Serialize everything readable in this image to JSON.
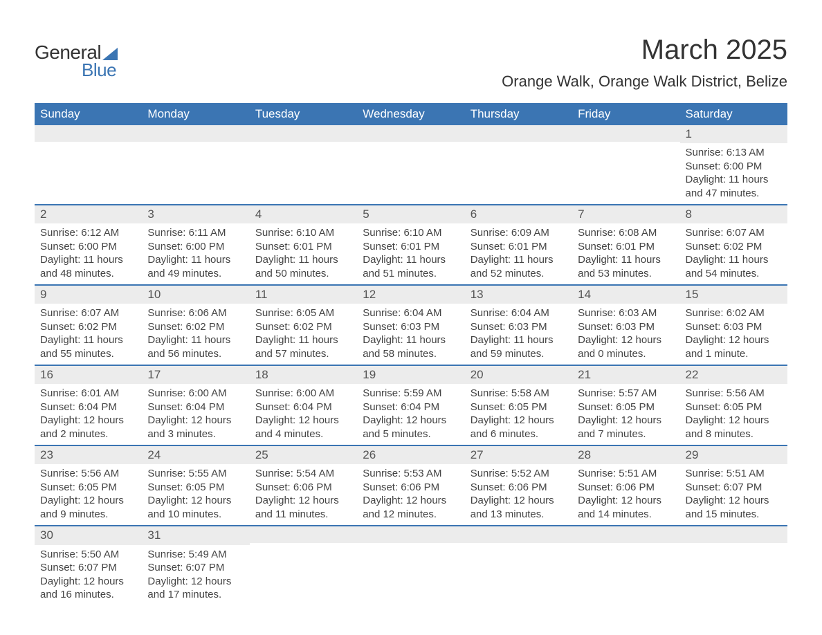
{
  "logo": {
    "text1": "General",
    "text2": "Blue"
  },
  "title": "March 2025",
  "subtitle": "Orange Walk, Orange Walk District, Belize",
  "colors": {
    "header_bg": "#3b75b3",
    "header_text": "#ffffff",
    "daynum_bg": "#ececec",
    "row_divider": "#3b75b3",
    "body_text": "#444444",
    "title_text": "#333333",
    "background": "#ffffff"
  },
  "typography": {
    "title_fontsize": 40,
    "subtitle_fontsize": 22,
    "header_fontsize": 17,
    "daynum_fontsize": 17,
    "cell_fontsize": 15
  },
  "calendar": {
    "type": "table",
    "columns": [
      "Sunday",
      "Monday",
      "Tuesday",
      "Wednesday",
      "Thursday",
      "Friday",
      "Saturday"
    ],
    "weeks": [
      [
        null,
        null,
        null,
        null,
        null,
        null,
        {
          "day": "1",
          "sunrise": "Sunrise: 6:13 AM",
          "sunset": "Sunset: 6:00 PM",
          "daylight1": "Daylight: 11 hours",
          "daylight2": "and 47 minutes."
        }
      ],
      [
        {
          "day": "2",
          "sunrise": "Sunrise: 6:12 AM",
          "sunset": "Sunset: 6:00 PM",
          "daylight1": "Daylight: 11 hours",
          "daylight2": "and 48 minutes."
        },
        {
          "day": "3",
          "sunrise": "Sunrise: 6:11 AM",
          "sunset": "Sunset: 6:00 PM",
          "daylight1": "Daylight: 11 hours",
          "daylight2": "and 49 minutes."
        },
        {
          "day": "4",
          "sunrise": "Sunrise: 6:10 AM",
          "sunset": "Sunset: 6:01 PM",
          "daylight1": "Daylight: 11 hours",
          "daylight2": "and 50 minutes."
        },
        {
          "day": "5",
          "sunrise": "Sunrise: 6:10 AM",
          "sunset": "Sunset: 6:01 PM",
          "daylight1": "Daylight: 11 hours",
          "daylight2": "and 51 minutes."
        },
        {
          "day": "6",
          "sunrise": "Sunrise: 6:09 AM",
          "sunset": "Sunset: 6:01 PM",
          "daylight1": "Daylight: 11 hours",
          "daylight2": "and 52 minutes."
        },
        {
          "day": "7",
          "sunrise": "Sunrise: 6:08 AM",
          "sunset": "Sunset: 6:01 PM",
          "daylight1": "Daylight: 11 hours",
          "daylight2": "and 53 minutes."
        },
        {
          "day": "8",
          "sunrise": "Sunrise: 6:07 AM",
          "sunset": "Sunset: 6:02 PM",
          "daylight1": "Daylight: 11 hours",
          "daylight2": "and 54 minutes."
        }
      ],
      [
        {
          "day": "9",
          "sunrise": "Sunrise: 6:07 AM",
          "sunset": "Sunset: 6:02 PM",
          "daylight1": "Daylight: 11 hours",
          "daylight2": "and 55 minutes."
        },
        {
          "day": "10",
          "sunrise": "Sunrise: 6:06 AM",
          "sunset": "Sunset: 6:02 PM",
          "daylight1": "Daylight: 11 hours",
          "daylight2": "and 56 minutes."
        },
        {
          "day": "11",
          "sunrise": "Sunrise: 6:05 AM",
          "sunset": "Sunset: 6:02 PM",
          "daylight1": "Daylight: 11 hours",
          "daylight2": "and 57 minutes."
        },
        {
          "day": "12",
          "sunrise": "Sunrise: 6:04 AM",
          "sunset": "Sunset: 6:03 PM",
          "daylight1": "Daylight: 11 hours",
          "daylight2": "and 58 minutes."
        },
        {
          "day": "13",
          "sunrise": "Sunrise: 6:04 AM",
          "sunset": "Sunset: 6:03 PM",
          "daylight1": "Daylight: 11 hours",
          "daylight2": "and 59 minutes."
        },
        {
          "day": "14",
          "sunrise": "Sunrise: 6:03 AM",
          "sunset": "Sunset: 6:03 PM",
          "daylight1": "Daylight: 12 hours",
          "daylight2": "and 0 minutes."
        },
        {
          "day": "15",
          "sunrise": "Sunrise: 6:02 AM",
          "sunset": "Sunset: 6:03 PM",
          "daylight1": "Daylight: 12 hours",
          "daylight2": "and 1 minute."
        }
      ],
      [
        {
          "day": "16",
          "sunrise": "Sunrise: 6:01 AM",
          "sunset": "Sunset: 6:04 PM",
          "daylight1": "Daylight: 12 hours",
          "daylight2": "and 2 minutes."
        },
        {
          "day": "17",
          "sunrise": "Sunrise: 6:00 AM",
          "sunset": "Sunset: 6:04 PM",
          "daylight1": "Daylight: 12 hours",
          "daylight2": "and 3 minutes."
        },
        {
          "day": "18",
          "sunrise": "Sunrise: 6:00 AM",
          "sunset": "Sunset: 6:04 PM",
          "daylight1": "Daylight: 12 hours",
          "daylight2": "and 4 minutes."
        },
        {
          "day": "19",
          "sunrise": "Sunrise: 5:59 AM",
          "sunset": "Sunset: 6:04 PM",
          "daylight1": "Daylight: 12 hours",
          "daylight2": "and 5 minutes."
        },
        {
          "day": "20",
          "sunrise": "Sunrise: 5:58 AM",
          "sunset": "Sunset: 6:05 PM",
          "daylight1": "Daylight: 12 hours",
          "daylight2": "and 6 minutes."
        },
        {
          "day": "21",
          "sunrise": "Sunrise: 5:57 AM",
          "sunset": "Sunset: 6:05 PM",
          "daylight1": "Daylight: 12 hours",
          "daylight2": "and 7 minutes."
        },
        {
          "day": "22",
          "sunrise": "Sunrise: 5:56 AM",
          "sunset": "Sunset: 6:05 PM",
          "daylight1": "Daylight: 12 hours",
          "daylight2": "and 8 minutes."
        }
      ],
      [
        {
          "day": "23",
          "sunrise": "Sunrise: 5:56 AM",
          "sunset": "Sunset: 6:05 PM",
          "daylight1": "Daylight: 12 hours",
          "daylight2": "and 9 minutes."
        },
        {
          "day": "24",
          "sunrise": "Sunrise: 5:55 AM",
          "sunset": "Sunset: 6:05 PM",
          "daylight1": "Daylight: 12 hours",
          "daylight2": "and 10 minutes."
        },
        {
          "day": "25",
          "sunrise": "Sunrise: 5:54 AM",
          "sunset": "Sunset: 6:06 PM",
          "daylight1": "Daylight: 12 hours",
          "daylight2": "and 11 minutes."
        },
        {
          "day": "26",
          "sunrise": "Sunrise: 5:53 AM",
          "sunset": "Sunset: 6:06 PM",
          "daylight1": "Daylight: 12 hours",
          "daylight2": "and 12 minutes."
        },
        {
          "day": "27",
          "sunrise": "Sunrise: 5:52 AM",
          "sunset": "Sunset: 6:06 PM",
          "daylight1": "Daylight: 12 hours",
          "daylight2": "and 13 minutes."
        },
        {
          "day": "28",
          "sunrise": "Sunrise: 5:51 AM",
          "sunset": "Sunset: 6:06 PM",
          "daylight1": "Daylight: 12 hours",
          "daylight2": "and 14 minutes."
        },
        {
          "day": "29",
          "sunrise": "Sunrise: 5:51 AM",
          "sunset": "Sunset: 6:07 PM",
          "daylight1": "Daylight: 12 hours",
          "daylight2": "and 15 minutes."
        }
      ],
      [
        {
          "day": "30",
          "sunrise": "Sunrise: 5:50 AM",
          "sunset": "Sunset: 6:07 PM",
          "daylight1": "Daylight: 12 hours",
          "daylight2": "and 16 minutes."
        },
        {
          "day": "31",
          "sunrise": "Sunrise: 5:49 AM",
          "sunset": "Sunset: 6:07 PM",
          "daylight1": "Daylight: 12 hours",
          "daylight2": "and 17 minutes."
        },
        null,
        null,
        null,
        null,
        null
      ]
    ]
  }
}
